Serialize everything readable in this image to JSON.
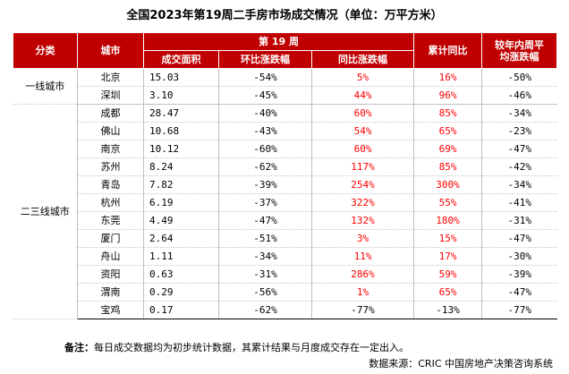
{
  "title": "全国2023年第19周二手房市场成交情况（单位：万平方米）",
  "headers": {
    "category": "分类",
    "city": "城市",
    "week": "第 19 周",
    "area": "成交面积",
    "mom": "环比涨跌幅",
    "yoy": "同比涨跌幅",
    "cum": "累计同比",
    "avg_line1": "较年内周平",
    "avg_line2": "均涨跌幅"
  },
  "groups": [
    {
      "category": "一线城市",
      "rows": [
        {
          "city": "北京",
          "area": "15.03",
          "mom": "-54%",
          "yoy": "5%",
          "cum": "16%",
          "avg": "-50%"
        },
        {
          "city": "深圳",
          "area": "3.10",
          "mom": "-45%",
          "yoy": "44%",
          "cum": "96%",
          "avg": "-46%"
        }
      ]
    },
    {
      "category": "二三线城市",
      "rows": [
        {
          "city": "成都",
          "area": "28.47",
          "mom": "-40%",
          "yoy": "60%",
          "cum": "85%",
          "avg": "-34%"
        },
        {
          "city": "佛山",
          "area": "10.68",
          "mom": "-43%",
          "yoy": "54%",
          "cum": "65%",
          "avg": "-23%"
        },
        {
          "city": "南京",
          "area": "10.12",
          "mom": "-60%",
          "yoy": "60%",
          "cum": "69%",
          "avg": "-47%"
        },
        {
          "city": "苏州",
          "area": "8.24",
          "mom": "-62%",
          "yoy": "117%",
          "cum": "85%",
          "avg": "-42%"
        },
        {
          "city": "青岛",
          "area": "7.82",
          "mom": "-39%",
          "yoy": "254%",
          "cum": "300%",
          "avg": "-34%"
        },
        {
          "city": "杭州",
          "area": "6.19",
          "mom": "-37%",
          "yoy": "322%",
          "cum": "55%",
          "avg": "-41%"
        },
        {
          "city": "东莞",
          "area": "4.49",
          "mom": "-47%",
          "yoy": "132%",
          "cum": "180%",
          "avg": "-31%"
        },
        {
          "city": "厦门",
          "area": "2.64",
          "mom": "-51%",
          "yoy": "3%",
          "cum": "15%",
          "avg": "-47%"
        },
        {
          "city": "舟山",
          "area": "1.11",
          "mom": "-34%",
          "yoy": "11%",
          "cum": "17%",
          "avg": "-30%"
        },
        {
          "city": "资阳",
          "area": "0.63",
          "mom": "-31%",
          "yoy": "286%",
          "cum": "59%",
          "avg": "-39%"
        },
        {
          "city": "渭南",
          "area": "0.29",
          "mom": "-56%",
          "yoy": "1%",
          "cum": "65%",
          "avg": "-47%"
        },
        {
          "city": "宝鸡",
          "area": "0.17",
          "mom": "-62%",
          "yoy": "-77%",
          "cum": "-13%",
          "avg": "-77%"
        }
      ]
    }
  ],
  "note": {
    "label": "备注：",
    "text": "每日成交数据均为初步统计数据，其累计结果与月度成交存在一定出入。"
  },
  "source": "数据来源：CRIC 中国房地产决策咨询系统",
  "colors": {
    "header_bg": "#c00000",
    "positive": "#ff0000"
  }
}
